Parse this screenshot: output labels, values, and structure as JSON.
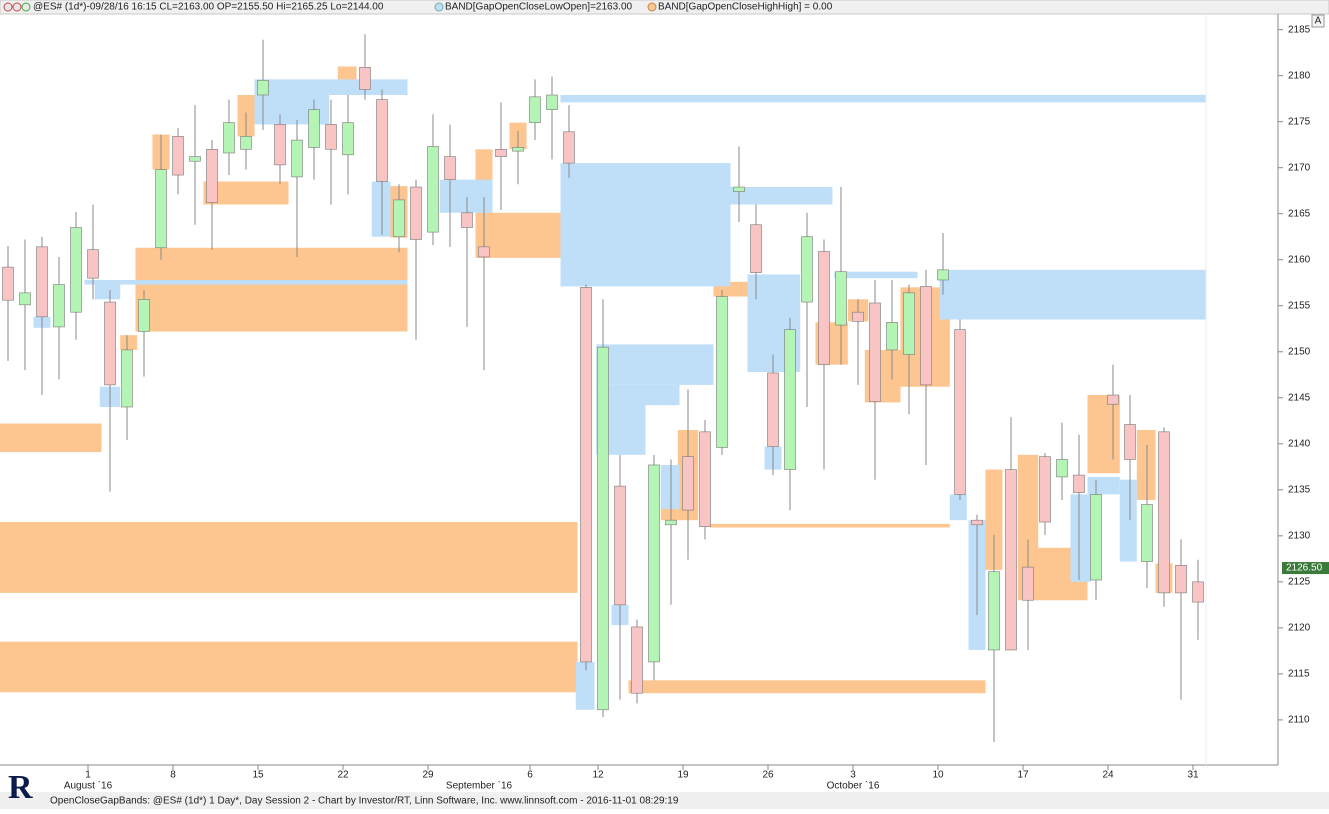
{
  "header": {
    "symbol": "@ES# (1d*)-09/28/16 16:15 CL=2163.00 OP=2155.50 Hi=2165.25 Lo=2144.00",
    "band1": "BAND[GapOpenCloseLowOpen]=2163.00",
    "band2": "BAND[GapOpenCloseHighHigh] = 0.00",
    "button": "A"
  },
  "footer": "OpenCloseGapBands: @ES# (1d*) 1 Day*, Day Session 2 - Chart by Investor/RT, Linn Software, Inc. www.linnsoft.com - 2016-11-01 08:29:19",
  "chart_data": {
    "type": "candlestick",
    "ylim": [
      2105.1,
      2186.7
    ],
    "yticks": [
      2110,
      2115,
      2120,
      2125,
      2130,
      2135,
      2140,
      2145,
      2150,
      2155,
      2160,
      2165,
      2170,
      2175,
      2180,
      2185
    ],
    "last_price": {
      "value": 2126.5,
      "label": "2126.50"
    },
    "up_color": "#b4f4b4",
    "down_color": "#f8c4c4",
    "x_labels": [
      {
        "index": 5,
        "label": "1"
      },
      {
        "index": 10,
        "label": "8"
      },
      {
        "index": 15,
        "label": "15"
      },
      {
        "index": 20,
        "label": "22"
      },
      {
        "index": 25,
        "label": "29"
      },
      {
        "index": 31,
        "label": "6"
      },
      {
        "index": 35,
        "label": "12"
      },
      {
        "index": 40,
        "label": "19"
      },
      {
        "index": 45,
        "label": "26"
      },
      {
        "index": 50,
        "label": "3"
      },
      {
        "index": 55,
        "label": "10"
      },
      {
        "index": 60,
        "label": "17"
      },
      {
        "index": 65,
        "label": "24"
      },
      {
        "index": 70,
        "label": "31"
      }
    ],
    "month_labels": [
      {
        "index": 5,
        "label": "August `16"
      },
      {
        "index": 28,
        "label": "September `16"
      },
      {
        "index": 50,
        "label": "October `16"
      }
    ],
    "open": [
      2159.2,
      2155.1,
      2161.4,
      2152.7,
      2154.3,
      2161.1,
      2155.4,
      2144,
      2152.2,
      2161.3,
      2173.4,
      2170.7,
      2172,
      2171.6,
      2172,
      2177.9,
      2174.7,
      2169,
      2172.2,
      2174.7,
      2171.4,
      2180.9,
      2177.4,
      2162.5,
      2167.9,
      2163,
      2171.2,
      2165.1,
      2161.4,
      2172,
      2171.8,
      2174.9,
      2176.3,
      2173.9,
      2157,
      2111.1,
      2135.4,
      2120.1,
      2116.3,
      2131.2,
      2138.6,
      2141.3,
      2139.6,
      2167.4,
      2163.8,
      2147.7,
      2137.2,
      2155.4,
      2160.9,
      2152.9,
      2154.3,
      2155.3,
      2150.2,
      2149.7,
      2157.1,
      2157.8,
      2152.4,
      2131.7,
      2117.6,
      2137.2,
      2126.6,
      2138.6,
      2136.4,
      2136.6,
      2125.2,
      2145.3,
      2142.1,
      2127.2,
      2141.3,
      2126.8,
      2125
    ],
    "high": [
      2161.5,
      2162.2,
      2162.5,
      2160.3,
      2165.2,
      2166,
      2156.7,
      2151.8,
      2156.7,
      2173.6,
      2174.3,
      2176.8,
      2173,
      2177.4,
      2176,
      2183.9,
      2175.8,
      2175.2,
      2177.4,
      2177.4,
      2177.9,
      2184.5,
      2178.5,
      2168.2,
      2168.7,
      2175.8,
      2174.7,
      2166.8,
      2166.8,
      2177.1,
      2174,
      2179.6,
      2179.9,
      2176.8,
      2157.3,
      2155.7,
      2138.8,
      2120.9,
      2138.8,
      2138.3,
      2145.9,
      2142.6,
      2156.7,
      2172.3,
      2166,
      2149.7,
      2153.7,
      2165.1,
      2162.2,
      2167.9,
      2155.7,
      2157.8,
      2157.8,
      2157.3,
      2158.9,
      2162.9,
      2153.5,
      2132.3,
      2130.1,
      2142.9,
      2129.6,
      2139,
      2142.3,
      2141,
      2136.1,
      2148.6,
      2145.3,
      2139.9,
      2141.8,
      2129.6,
      2127.4
    ],
    "low": [
      2149,
      2148,
      2145.3,
      2147,
      2151.3,
      2155.7,
      2134.8,
      2140.4,
      2147.3,
      2160,
      2167.1,
      2163.8,
      2161.1,
      2169.2,
      2169.8,
      2174.1,
      2168.2,
      2160.3,
      2168.7,
      2166,
      2167.1,
      2177.4,
      2162.7,
      2160.8,
      2151.3,
      2161.6,
      2161.4,
      2152.7,
      2148,
      2165.4,
      2168.2,
      2173,
      2170.9,
      2168.9,
      2115.4,
      2110.3,
      2112.2,
      2111.8,
      2114.3,
      2122.5,
      2127.4,
      2129.6,
      2138.8,
      2164.1,
      2155.7,
      2136.6,
      2132.8,
      2144,
      2137.2,
      2148.6,
      2146.4,
      2136.1,
      2147,
      2143.2,
      2137.7,
      2156.2,
      2133.9,
      2121.4,
      2107.6,
      2117.6,
      2117.6,
      2130.1,
      2133.9,
      2125.2,
      2123,
      2138.3,
      2131.7,
      2124.3,
      2122.3,
      2112.2,
      2118.7
    ],
    "close": [
      2155.6,
      2156.4,
      2153.8,
      2157.3,
      2163.5,
      2158,
      2146.4,
      2150.2,
      2155.7,
      2169.8,
      2169.2,
      2171.2,
      2166.2,
      2174.9,
      2173.4,
      2179.5,
      2170.3,
      2173,
      2176.3,
      2172,
      2174.9,
      2178.5,
      2168.5,
      2166.5,
      2162.2,
      2172.3,
      2168.7,
      2163.5,
      2160.3,
      2171.2,
      2172.2,
      2177.7,
      2177.9,
      2170.5,
      2116.3,
      2150.5,
      2122.5,
      2112.9,
      2137.7,
      2131.7,
      2132.8,
      2131,
      2156,
      2167.9,
      2158.6,
      2139.7,
      2152.4,
      2162.5,
      2148.6,
      2158.7,
      2153.3,
      2144.6,
      2153.2,
      2156.4,
      2146.4,
      2158.9,
      2134.5,
      2131.2,
      2126.1,
      2117.6,
      2123,
      2131.5,
      2138.3,
      2134.7,
      2134.5,
      2144.3,
      2138.3,
      2133.4,
      2123.8,
      2123.8,
      2122.8
    ],
    "bands": [
      {
        "name": "BAND[GapOpenCloseHighHigh]",
        "color": "#fdc58f",
        "rects": [
          [
            -0.5,
            5.5,
            2139.1,
            2142.2
          ],
          [
            -0.5,
            33.5,
            2123.8,
            2131.5
          ],
          [
            -0.5,
            33.5,
            2113,
            2118.5
          ],
          [
            7.5,
            23.5,
            2152.2,
            2161.3
          ],
          [
            11.5,
            16.5,
            2166,
            2168.5
          ],
          [
            8.5,
            9.5,
            2169.8,
            2173.6
          ],
          [
            13.5,
            14.5,
            2173.4,
            2177.9
          ],
          [
            19.4,
            20.5,
            2177.9,
            2181
          ],
          [
            27.5,
            32.5,
            2160.2,
            2165.1
          ],
          [
            27.5,
            28.5,
            2165.1,
            2172
          ],
          [
            29.5,
            30.5,
            2172,
            2174.9
          ],
          [
            22.5,
            23.5,
            2162.4,
            2168
          ],
          [
            36.5,
            57.5,
            2112.9,
            2114.3
          ],
          [
            41.3,
            55.4,
            2130.9,
            2131.3
          ],
          [
            41.5,
            43.5,
            2156,
            2157.6
          ],
          [
            39.4,
            40.6,
            2131.7,
            2141.5
          ],
          [
            38.4,
            39.4,
            2131.7,
            2133.9
          ],
          [
            47.5,
            49.4,
            2148.6,
            2153.2
          ],
          [
            49.4,
            50.6,
            2153.3,
            2155.7
          ],
          [
            50.4,
            52.5,
            2144.5,
            2150.2
          ],
          [
            52.5,
            55.4,
            2146.2,
            2157
          ],
          [
            57.5,
            58.5,
            2126.3,
            2137.2
          ],
          [
            59.4,
            60.6,
            2123,
            2138.8
          ],
          [
            60.4,
            63.5,
            2123,
            2128.7
          ],
          [
            63.5,
            65.4,
            2136.8,
            2145.3
          ],
          [
            66.4,
            67.5,
            2133.9,
            2141.5
          ],
          [
            67.5,
            68.5,
            2123.8,
            2127
          ],
          [
            6.6,
            7.6,
            2150.2,
            2151.8
          ]
        ]
      },
      {
        "name": "BAND[GapOpenCloseLowOpen]",
        "color": "#bfdff9",
        "rects": [
          [
            32.5,
            42.5,
            2157.1,
            2170.5
          ],
          [
            32.5,
            70.5,
            2177.1,
            2177.9
          ],
          [
            42.5,
            48.5,
            2166,
            2167.9
          ],
          [
            54.8,
            70.5,
            2153.5,
            2158.9
          ],
          [
            48.6,
            53.5,
            2158,
            2158.7
          ],
          [
            43.5,
            46.6,
            2147.8,
            2158.4
          ],
          [
            34.6,
            41.5,
            2146.4,
            2150.8
          ],
          [
            34.6,
            37.5,
            2138.8,
            2146.4
          ],
          [
            37.5,
            39.5,
            2144.2,
            2146.4
          ],
          [
            14.5,
            23.5,
            2177.9,
            2179.6
          ],
          [
            14.5,
            18.9,
            2174.7,
            2177.9
          ],
          [
            25.4,
            28.5,
            2165.1,
            2168.7
          ],
          [
            21.4,
            22.5,
            2162.5,
            2168.5
          ],
          [
            56.5,
            57.5,
            2117.6,
            2131.7
          ],
          [
            62.5,
            63.7,
            2125,
            2134.5
          ],
          [
            65.4,
            66.4,
            2127.2,
            2136.1
          ],
          [
            33.4,
            34.5,
            2111.1,
            2116.3
          ],
          [
            38.4,
            39.5,
            2132.9,
            2137.7
          ],
          [
            5.1,
            6.6,
            2155.7,
            2157.8
          ],
          [
            5.4,
            6.6,
            2144,
            2146.2
          ],
          [
            1.5,
            2.5,
            2152.6,
            2153.8
          ],
          [
            63.5,
            65.4,
            2134.5,
            2136.4
          ],
          [
            35.5,
            36.5,
            2120.3,
            2122.5
          ],
          [
            55.4,
            56.4,
            2131.7,
            2134.5
          ],
          [
            44.5,
            45.5,
            2137.2,
            2139.7
          ],
          [
            4.5,
            23.5,
            2157.3,
            2157.8
          ]
        ]
      }
    ]
  }
}
